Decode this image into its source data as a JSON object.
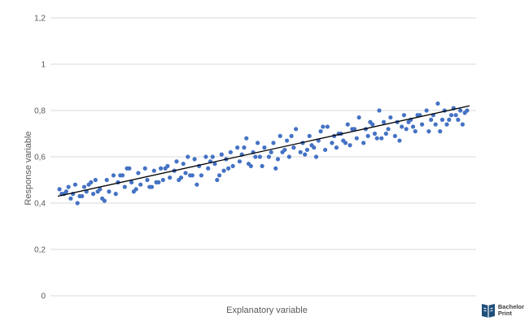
{
  "chart_data": {
    "type": "scatter",
    "title": "",
    "xlabel": "Explanatory variable",
    "ylabel": "Response variable",
    "ylim": [
      0,
      1.2
    ],
    "y_ticks": [
      "0",
      "0,2",
      "0,4",
      "0,6",
      "0,8",
      "1",
      "1,2"
    ],
    "y_tick_values": [
      0,
      0.2,
      0.4,
      0.6,
      0.8,
      1.0,
      1.2
    ],
    "x_ticks_shown": false,
    "grid": "horizontal",
    "legend": "none",
    "colors": {
      "points": "#4472c4",
      "trendline": "#000000",
      "grid": "#d9d9d9"
    },
    "trendline": {
      "x": [
        0,
        181
      ],
      "y": [
        0.43,
        0.82
      ]
    },
    "xlim": [
      -4,
      185
    ],
    "points": {
      "x": [
        0,
        2,
        3,
        5,
        6,
        7,
        8,
        10,
        11,
        12,
        13,
        15,
        16,
        18,
        19,
        21,
        22,
        24,
        25,
        26,
        28,
        29,
        31,
        32,
        33,
        35,
        36,
        38,
        39,
        41,
        42,
        43,
        45,
        46,
        48,
        49,
        51,
        52,
        53,
        55,
        56,
        57,
        59,
        60,
        62,
        63,
        65,
        66,
        67,
        69,
        70,
        72,
        73,
        74,
        76,
        77,
        79,
        80,
        81,
        83,
        84,
        86,
        87,
        88,
        90,
        91,
        93,
        94,
        95,
        97,
        98,
        100,
        101,
        102,
        104,
        105,
        107,
        108,
        109,
        111,
        112,
        114,
        115,
        116,
        118,
        119,
        121,
        122,
        123,
        125,
        126,
        128,
        129,
        130,
        132,
        133,
        135,
        136,
        137,
        139,
        140,
        142,
        143,
        144,
        146,
        147,
        149,
        150,
        151,
        153,
        154,
        156,
        157,
        158,
        160,
        161,
        163,
        164,
        165,
        167,
        168,
        170,
        171,
        172,
        174,
        175,
        177,
        178,
        179,
        181,
        4,
        9,
        14,
        20,
        27,
        34,
        40,
        47,
        54,
        61,
        68,
        75,
        82,
        89,
        96,
        103,
        110,
        117,
        124,
        131,
        138,
        145,
        152,
        159,
        166,
        173,
        180,
        1,
        17,
        30,
        44,
        58,
        71,
        85,
        99,
        113,
        127,
        141,
        155,
        169,
        176
      ],
      "y": [
        0.46,
        0.44,
        0.45,
        0.42,
        0.44,
        0.48,
        0.4,
        0.43,
        0.47,
        0.45,
        0.48,
        0.44,
        0.5,
        0.46,
        0.42,
        0.5,
        0.45,
        0.52,
        0.44,
        0.49,
        0.52,
        0.47,
        0.55,
        0.49,
        0.45,
        0.53,
        0.48,
        0.55,
        0.5,
        0.47,
        0.54,
        0.49,
        0.55,
        0.5,
        0.56,
        0.51,
        0.54,
        0.58,
        0.5,
        0.57,
        0.53,
        0.6,
        0.52,
        0.59,
        0.56,
        0.52,
        0.6,
        0.55,
        0.58,
        0.57,
        0.5,
        0.61,
        0.54,
        0.59,
        0.62,
        0.56,
        0.64,
        0.58,
        0.61,
        0.68,
        0.57,
        0.62,
        0.6,
        0.66,
        0.56,
        0.64,
        0.6,
        0.62,
        0.66,
        0.59,
        0.69,
        0.63,
        0.67,
        0.6,
        0.64,
        0.72,
        0.62,
        0.66,
        0.61,
        0.69,
        0.65,
        0.6,
        0.67,
        0.71,
        0.63,
        0.73,
        0.66,
        0.69,
        0.64,
        0.7,
        0.67,
        0.74,
        0.65,
        0.72,
        0.68,
        0.77,
        0.66,
        0.72,
        0.69,
        0.74,
        0.7,
        0.8,
        0.68,
        0.75,
        0.72,
        0.77,
        0.69,
        0.75,
        0.67,
        0.78,
        0.72,
        0.76,
        0.73,
        0.71,
        0.78,
        0.74,
        0.8,
        0.71,
        0.76,
        0.74,
        0.83,
        0.76,
        0.8,
        0.74,
        0.78,
        0.81,
        0.76,
        0.8,
        0.74,
        0.8,
        0.47,
        0.43,
        0.49,
        0.41,
        0.52,
        0.46,
        0.47,
        0.55,
        0.51,
        0.48,
        0.6,
        0.55,
        0.64,
        0.6,
        0.55,
        0.69,
        0.63,
        0.73,
        0.7,
        0.72,
        0.75,
        0.7,
        0.73,
        0.78,
        0.78,
        0.76,
        0.79,
        0.44,
        0.45,
        0.55,
        0.49,
        0.52,
        0.52,
        0.56,
        0.62,
        0.64,
        0.66,
        0.68,
        0.75,
        0.71,
        0.78
      ]
    }
  },
  "branding": {
    "logo_text_line1": "Bachelor",
    "logo_text_line2": "Print"
  }
}
